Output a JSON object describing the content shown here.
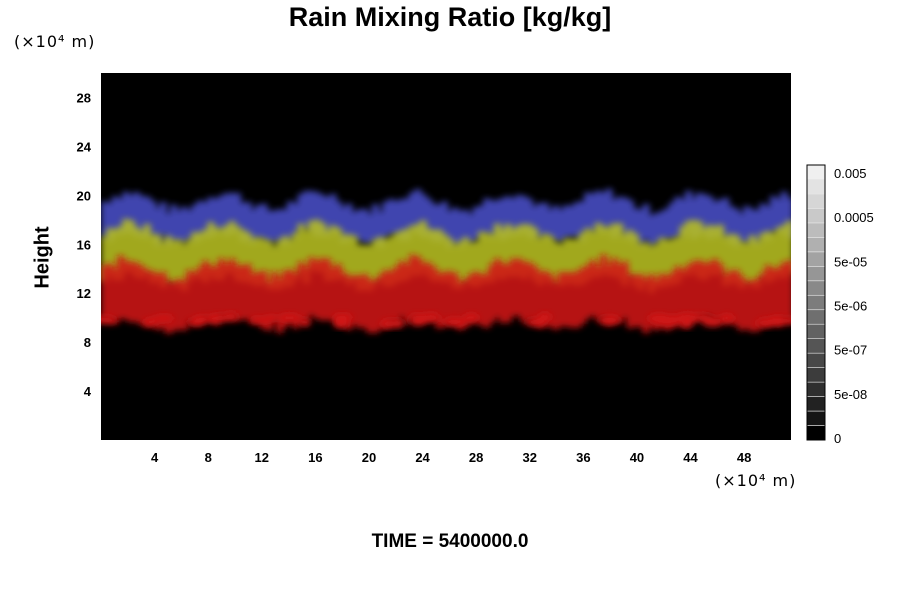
{
  "chart_data": {
    "type": "heatmap",
    "title": "Rain Mixing Ratio [kg/kg]",
    "xlabel": "",
    "ylabel": "Height",
    "x_unit": "(×10⁴ m)",
    "y_unit": "(×10⁴ m)",
    "xlim": [
      0,
      51.5
    ],
    "ylim": [
      0,
      30
    ],
    "x_ticks": [
      "4",
      "8",
      "12",
      "16",
      "20",
      "24",
      "28",
      "32",
      "36",
      "40",
      "44",
      "48"
    ],
    "y_ticks": [
      "4",
      "8",
      "12",
      "16",
      "20",
      "24",
      "28"
    ],
    "colorbar": {
      "labels": [
        "0",
        "5e-08",
        "5e-07",
        "5e-06",
        "5e-05",
        "0.0005",
        "0.005"
      ],
      "levels": 19
    },
    "layers": [
      {
        "name": "blue",
        "color": "#4a50c8",
        "height_range": [
          16.5,
          19.5
        ]
      },
      {
        "name": "yellow",
        "color": "#b8c020",
        "height_range": [
          13,
          17
        ]
      },
      {
        "name": "red",
        "color": "#d01818",
        "height_range": [
          9.5,
          14
        ]
      }
    ],
    "background": "#000000"
  },
  "footer": {
    "time_label": "TIME = 5400000.0"
  }
}
